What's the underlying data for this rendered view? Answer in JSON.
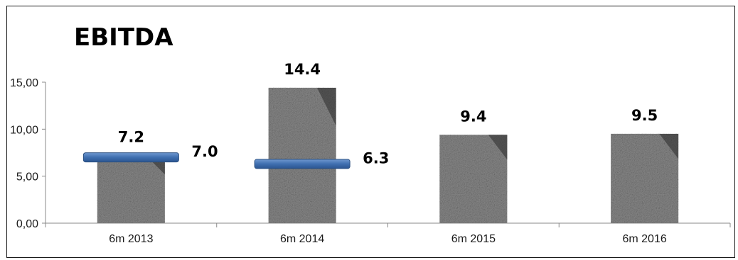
{
  "chart_data": {
    "type": "bar",
    "title": "EBITDA",
    "categories": [
      "6m 2013",
      "6m 2014",
      "6m 2015",
      "6m 2016"
    ],
    "series": [
      {
        "type": "bar",
        "values": [
          7.2,
          14.4,
          9.4,
          9.5
        ],
        "labels": [
          "7.2",
          "14.4",
          "9.4",
          "9.5"
        ]
      },
      {
        "type": "marker",
        "values": [
          7.0,
          6.3,
          null,
          null
        ],
        "labels": [
          "7.0",
          "6.3",
          null,
          null
        ]
      }
    ],
    "ylim": [
      0,
      15
    ],
    "yticks": [
      0,
      5,
      10,
      15
    ],
    "ytick_labels": [
      "0,00",
      "5,00",
      "10,00",
      "15,00"
    ],
    "colors": {
      "bar_texture": "#8a8a8a",
      "marker": "#3f6fb0",
      "marker_edge": "#2a4f80"
    }
  }
}
